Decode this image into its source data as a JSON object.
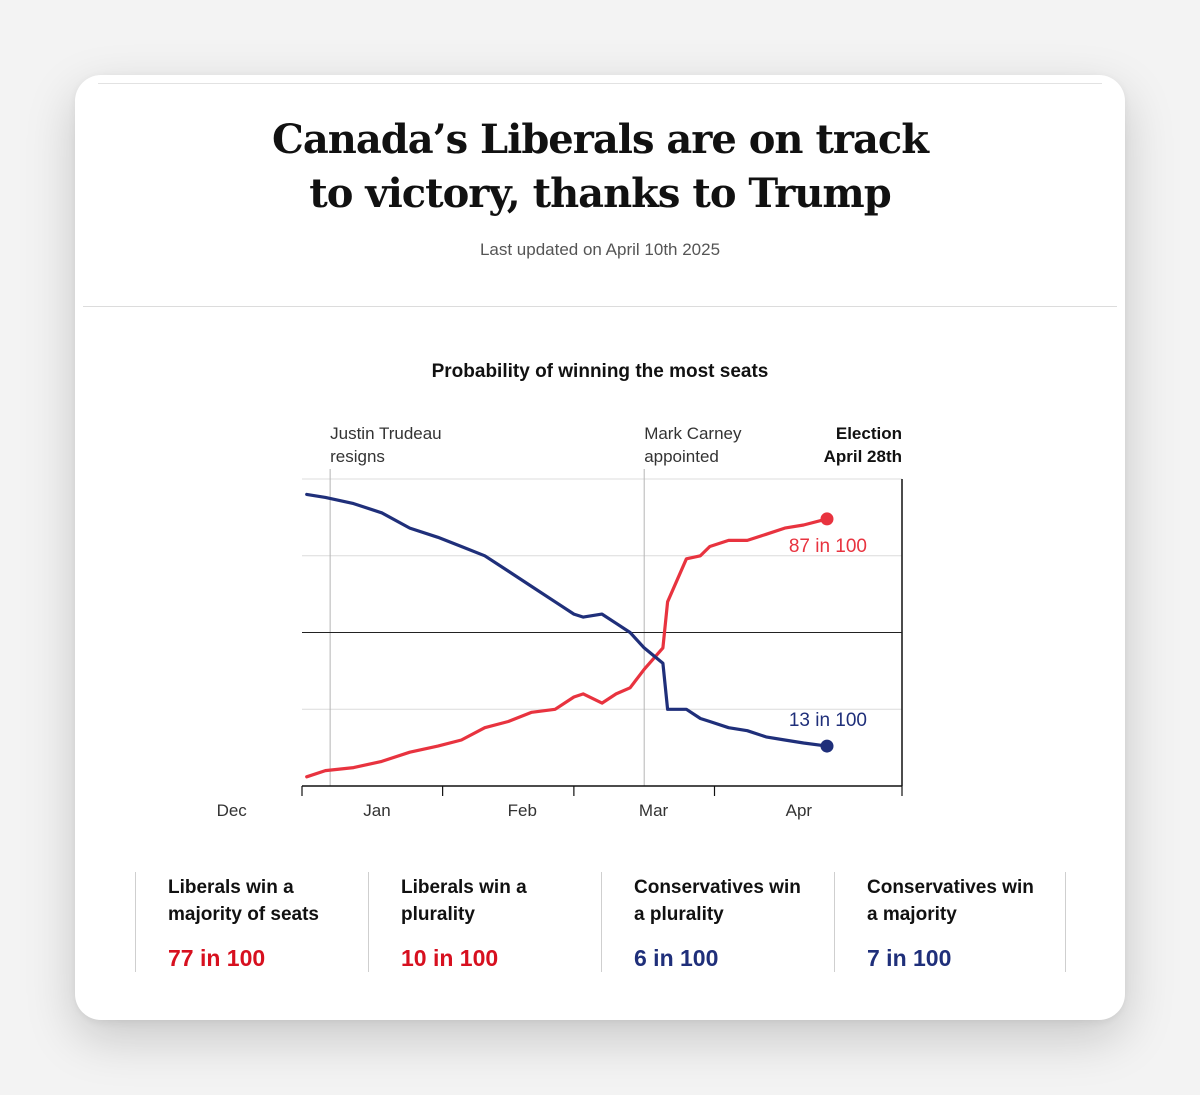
{
  "header": {
    "headline_line1": "Canada’s Liberals are on track",
    "headline_line2": "to victory, thanks to Trump",
    "updated": "Last updated on April 10th 2025"
  },
  "colors": {
    "liberal": "#e8333f",
    "conservative": "#1f2f7a",
    "liberal_stat": "#d7101f"
  },
  "chart_data": {
    "type": "line",
    "title": "Probability of winning the most seats",
    "x_axis": {
      "tick_labels": [
        "Dec",
        "Jan",
        "Feb",
        "Mar",
        "Apr"
      ],
      "tick_days": [
        15,
        46,
        77,
        105,
        136
      ]
    },
    "y_range": [
      0,
      100
    ],
    "y_gridlines": [
      25,
      50,
      75
    ],
    "annotations": [
      {
        "id": "trudeau",
        "day": 36,
        "line1": "Justin Trudeau",
        "line2": "resigns"
      },
      {
        "id": "carney",
        "day": 103,
        "line1": "Mark Carney",
        "line2": "appointed"
      },
      {
        "id": "election",
        "day": 158,
        "line1": "Election",
        "line2": "April 28th"
      }
    ],
    "series": [
      {
        "color": "#e8333f",
        "end_label": "87 in 100",
        "end_value": 87,
        "points": [
          [
            31,
            3
          ],
          [
            35,
            5
          ],
          [
            41,
            6
          ],
          [
            47,
            8
          ],
          [
            53,
            11
          ],
          [
            59,
            13
          ],
          [
            64,
            15
          ],
          [
            69,
            19
          ],
          [
            74,
            21
          ],
          [
            79,
            24
          ],
          [
            84,
            25
          ],
          [
            88,
            29
          ],
          [
            90,
            30
          ],
          [
            94,
            27
          ],
          [
            97,
            30
          ],
          [
            100,
            32
          ],
          [
            103,
            38
          ],
          [
            107,
            45
          ],
          [
            108,
            60
          ],
          [
            112,
            74
          ],
          [
            115,
            75
          ],
          [
            117,
            78
          ],
          [
            121,
            80
          ],
          [
            125,
            80
          ],
          [
            129,
            82
          ],
          [
            133,
            84
          ],
          [
            137,
            85
          ],
          [
            142,
            87
          ]
        ]
      },
      {
        "color": "#1f2f7a",
        "end_label": "13 in 100",
        "end_value": 13,
        "points": [
          [
            31,
            95
          ],
          [
            35,
            94
          ],
          [
            41,
            92
          ],
          [
            47,
            89
          ],
          [
            53,
            84
          ],
          [
            59,
            81
          ],
          [
            64,
            78
          ],
          [
            69,
            75
          ],
          [
            74,
            70
          ],
          [
            79,
            65
          ],
          [
            84,
            60
          ],
          [
            88,
            56
          ],
          [
            90,
            55
          ],
          [
            94,
            56
          ],
          [
            97,
            53
          ],
          [
            100,
            50
          ],
          [
            103,
            45
          ],
          [
            107,
            40
          ],
          [
            108,
            25
          ],
          [
            112,
            25
          ],
          [
            115,
            22
          ],
          [
            117,
            21
          ],
          [
            121,
            19
          ],
          [
            125,
            18
          ],
          [
            129,
            16
          ],
          [
            133,
            15
          ],
          [
            137,
            14
          ],
          [
            142,
            13
          ]
        ]
      }
    ]
  },
  "stats": [
    {
      "label_line1": "Liberals win a",
      "label_line2": "majority of seats",
      "value": "77 in 100",
      "party": "liberal"
    },
    {
      "label_line1": "Liberals win a",
      "label_line2": "plurality",
      "value": "10 in 100",
      "party": "liberal"
    },
    {
      "label_line1": "Conservatives win",
      "label_line2": "a plurality",
      "value": "6 in 100",
      "party": "conservative"
    },
    {
      "label_line1": "Conservatives win",
      "label_line2": "a majority",
      "value": "7 in 100",
      "party": "conservative"
    }
  ]
}
